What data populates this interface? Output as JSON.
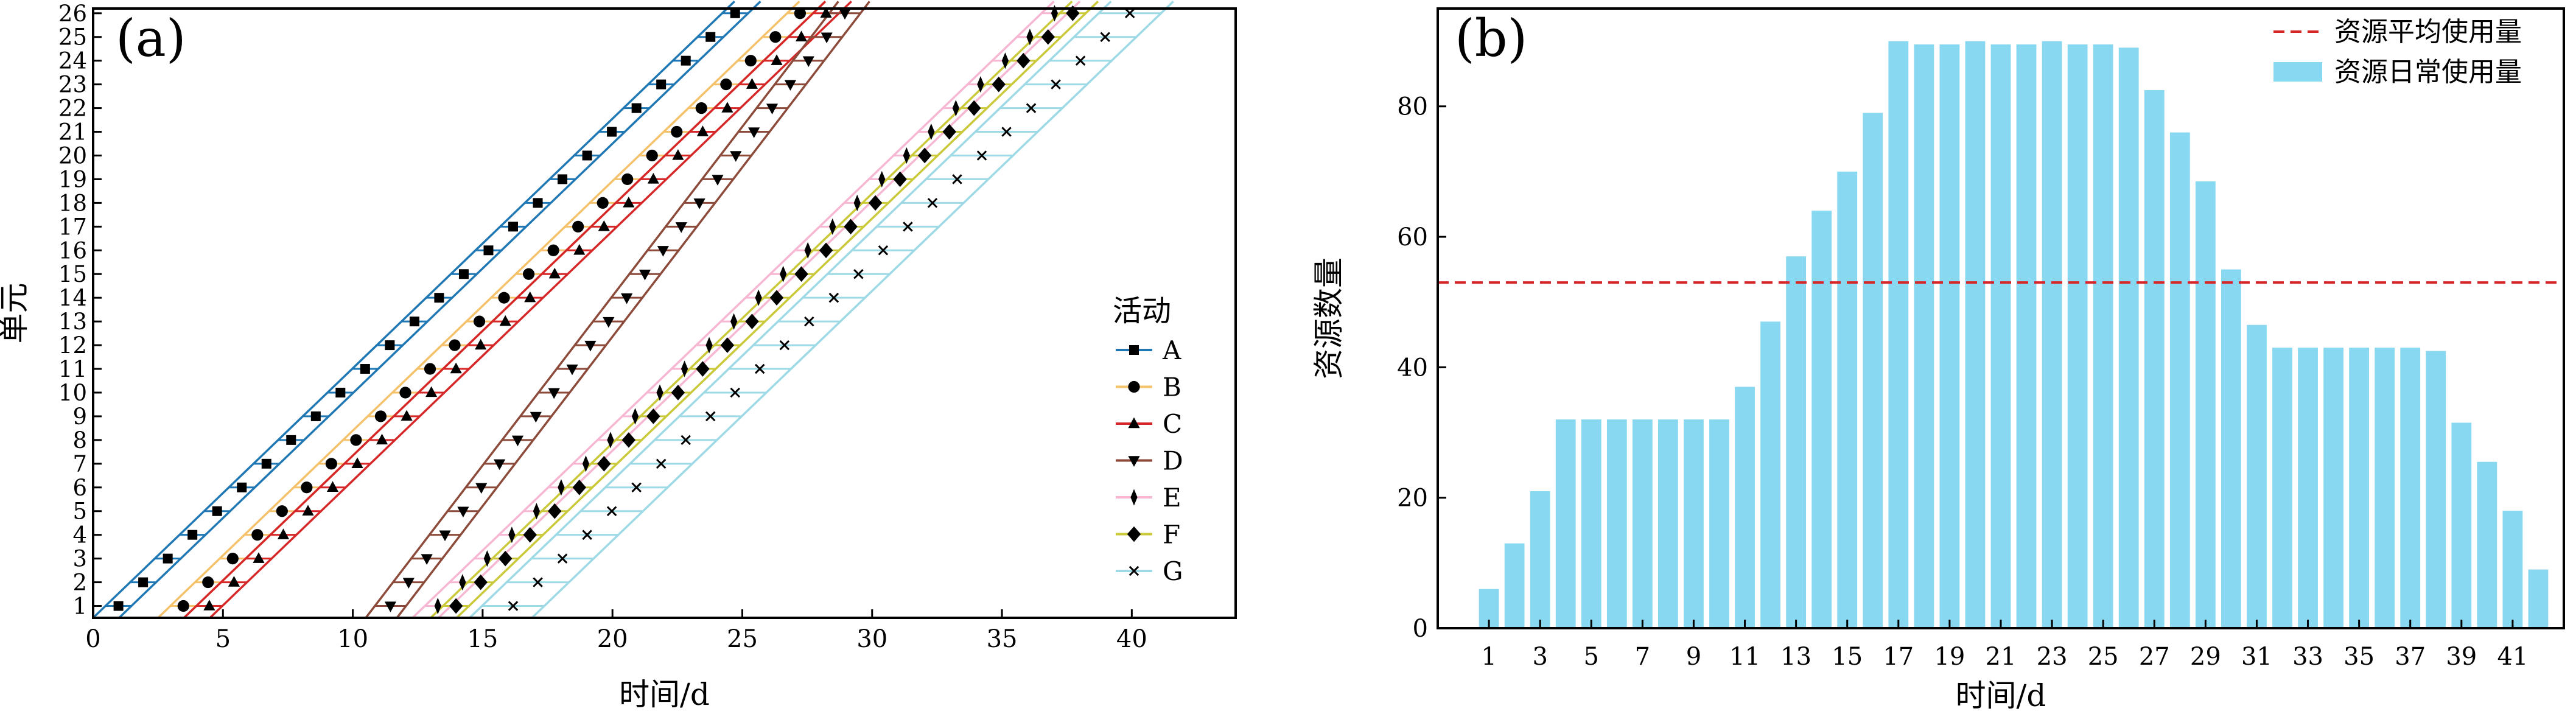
{
  "chart_data": [
    {
      "panel_label": "(a)",
      "type": "line",
      "xlabel": "时间/d",
      "ylabel": "单元",
      "xlim": [
        0,
        44
      ],
      "ylim": [
        0.5,
        26.2
      ],
      "xticks": [
        0,
        5,
        10,
        15,
        20,
        25,
        30,
        35,
        40
      ],
      "yticks": [
        1,
        2,
        3,
        4,
        5,
        6,
        7,
        8,
        9,
        10,
        11,
        12,
        13,
        14,
        15,
        16,
        17,
        18,
        19,
        20,
        21,
        22,
        23,
        24,
        25,
        26
      ],
      "units": 26,
      "legend_title": "活动",
      "legend_position": "center-right",
      "series": [
        {
          "name": "A",
          "start": 0,
          "duration": 1.0,
          "slope": 0.95,
          "color": "#1f77b4",
          "marker": "square"
        },
        {
          "name": "B",
          "start": 2.5,
          "duration": 1.0,
          "slope": 0.95,
          "color": "#f5c26b",
          "marker": "circle"
        },
        {
          "name": "C",
          "start": 3.5,
          "duration": 1.0,
          "slope": 0.95,
          "color": "#d62728",
          "marker": "triangle"
        },
        {
          "name": "D",
          "start": 10.5,
          "duration": 1.2,
          "slope": 0.7,
          "color": "#8c4a3a",
          "marker": "triangle-down"
        },
        {
          "name": "E",
          "start": 12.3,
          "duration": 1.0,
          "slope": 0.95,
          "color": "#f7b6d2",
          "marker": "thin-diamond"
        },
        {
          "name": "F",
          "start": 13.0,
          "duration": 1.0,
          "slope": 0.95,
          "color": "#c9c93a",
          "marker": "diamond"
        },
        {
          "name": "G",
          "start": 14.5,
          "duration": 2.4,
          "slope": 0.95,
          "color": "#9edae5",
          "marker": "x"
        }
      ]
    },
    {
      "panel_label": "(b)",
      "type": "bar",
      "xlabel": "时间/d",
      "ylabel": "资源数量",
      "xlim": [
        -1,
        43
      ],
      "ylim": [
        0,
        95
      ],
      "yticks": [
        0,
        20,
        40,
        60,
        80
      ],
      "xticks": [
        1,
        3,
        5,
        7,
        9,
        11,
        13,
        15,
        17,
        19,
        21,
        23,
        25,
        27,
        29,
        31,
        33,
        35,
        37,
        39,
        41
      ],
      "categories": [
        1,
        2,
        3,
        4,
        5,
        6,
        7,
        8,
        9,
        10,
        11,
        12,
        13,
        14,
        15,
        16,
        17,
        18,
        19,
        20,
        21,
        22,
        23,
        24,
        25,
        26,
        27,
        28,
        29,
        30,
        31,
        32,
        33,
        34,
        35,
        36,
        37,
        38,
        39,
        40,
        41,
        42
      ],
      "values": [
        6,
        13,
        21,
        32,
        32,
        32,
        32,
        32,
        32,
        32,
        37,
        47,
        57,
        64,
        70,
        79,
        90,
        89.5,
        89.5,
        90,
        89.5,
        89.5,
        90,
        89.5,
        89.5,
        89,
        82.5,
        76,
        68.5,
        55,
        46.5,
        43,
        43,
        43,
        43,
        43,
        43,
        42.5,
        31.5,
        25.5,
        18,
        9
      ],
      "average": 53,
      "legend_position": "top-right",
      "series": [
        {
          "name": "资源平均使用量",
          "style": "dashed-line",
          "color": "#d62728"
        },
        {
          "name": "资源日常使用量",
          "style": "bar",
          "color": "#87d8f0"
        }
      ]
    }
  ]
}
